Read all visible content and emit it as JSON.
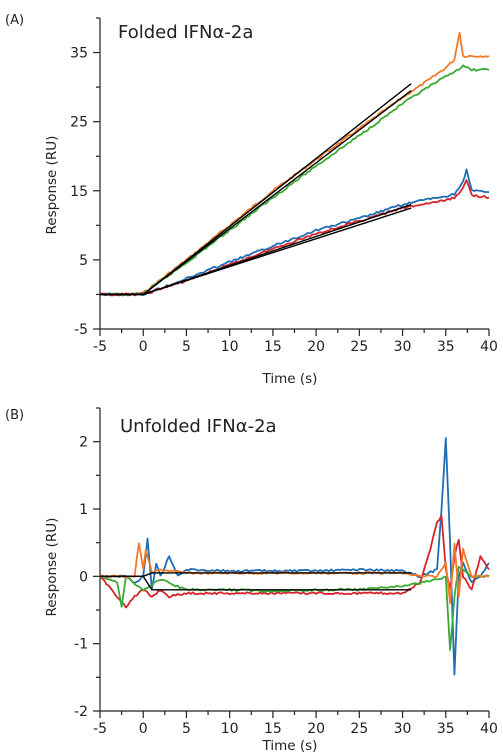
{
  "chart_data": [
    {
      "type": "line",
      "panel_label": "(A)",
      "title": "Folded IFNα-2a",
      "xlabel": "Time (s)",
      "ylabel": "Response (RU)",
      "xlim": [
        -5,
        40
      ],
      "ylim": [
        -5,
        40
      ],
      "xticks": [
        "-5",
        "0",
        "5",
        "10",
        "15",
        "20",
        "25",
        "30",
        "35",
        "40"
      ],
      "yticks": [
        "-5",
        "5",
        "15",
        "25",
        "35"
      ],
      "grid": false,
      "legend": "none",
      "series": [
        {
          "color": "#F07A28",
          "x": [
            -5,
            -2,
            0,
            5,
            10,
            15,
            20,
            25,
            30,
            33,
            35,
            36,
            36.6,
            37,
            38,
            40
          ],
          "y": [
            0,
            0,
            0.2,
            5,
            10,
            15,
            19.5,
            24,
            28.5,
            31,
            32.8,
            34,
            38,
            34.5,
            34.5,
            34.5
          ]
        },
        {
          "color": "#3AAA35",
          "x": [
            -5,
            -2,
            0,
            5,
            10,
            15,
            20,
            25,
            30,
            33,
            35,
            36,
            37,
            38,
            40
          ],
          "y": [
            0,
            0,
            0.1,
            4.6,
            9.3,
            14,
            18.6,
            23,
            27.6,
            30,
            31.5,
            32.3,
            33,
            32.5,
            32.5
          ]
        },
        {
          "color": "#1F6EB5",
          "x": [
            -5,
            -2,
            0,
            5,
            10,
            15,
            20,
            25,
            30,
            33,
            35,
            36,
            37,
            37.4,
            38,
            40
          ],
          "y": [
            0,
            0,
            0,
            2.3,
            4.7,
            7,
            9.3,
            11,
            13,
            13.8,
            14.2,
            14.5,
            16.4,
            18,
            15,
            14.8
          ]
        },
        {
          "color": "#D8232A",
          "x": [
            -5,
            -2,
            0,
            5,
            10,
            15,
            20,
            25,
            30,
            33,
            35,
            36,
            37,
            37.4,
            38,
            40
          ],
          "y": [
            0,
            0,
            0,
            2,
            4.3,
            6.6,
            8.8,
            10.6,
            12.5,
            13.2,
            13.6,
            14,
            15.4,
            16.5,
            14.4,
            14
          ]
        }
      ],
      "fits": [
        {
          "x": [
            -5,
            0,
            31
          ],
          "y": [
            0,
            0,
            30.5
          ]
        },
        {
          "x": [
            -5,
            0,
            31
          ],
          "y": [
            0,
            0,
            29.5
          ]
        },
        {
          "x": [
            -5,
            0,
            31
          ],
          "y": [
            0,
            0,
            13
          ]
        },
        {
          "x": [
            -5,
            0,
            31
          ],
          "y": [
            0,
            0,
            12.5
          ]
        }
      ]
    },
    {
      "type": "line",
      "panel_label": "(B)",
      "title": "Unfolded IFNα-2a",
      "xlabel": "Time (s)",
      "ylabel": "Response (RU)",
      "xlim": [
        -5,
        40
      ],
      "ylim": [
        -2,
        2.5
      ],
      "xticks": [
        "-5",
        "0",
        "5",
        "10",
        "15",
        "20",
        "25",
        "30",
        "35",
        "40"
      ],
      "yticks": [
        "-2",
        "-1",
        "0",
        "1",
        "2"
      ],
      "grid": false,
      "legend": "none",
      "series": [
        {
          "color": "#1F6EB5",
          "x": [
            -5,
            -2,
            -1,
            0,
            0.5,
            1,
            1.5,
            2,
            3,
            4,
            5,
            10,
            15,
            20,
            25,
            30,
            32,
            34,
            34.5,
            35,
            35.5,
            36,
            36.5,
            37,
            38,
            39,
            40
          ],
          "y": [
            0,
            0,
            -0.1,
            0,
            0.55,
            -0.2,
            0.2,
            0,
            0.3,
            0,
            0.1,
            0.08,
            0.08,
            0.08,
            0.1,
            0.08,
            0,
            0.1,
            1,
            2.05,
            0.5,
            -1.45,
            0,
            0.2,
            -0.1,
            0,
            0.2
          ]
        },
        {
          "color": "#D8232A",
          "x": [
            -5,
            -3,
            -2,
            -1,
            0,
            1,
            2,
            3,
            5,
            10,
            15,
            20,
            25,
            30,
            32,
            33,
            34,
            34.5,
            35,
            35.5,
            36,
            36.5,
            37,
            38,
            39,
            40
          ],
          "y": [
            0,
            -0.3,
            -0.45,
            -0.3,
            -0.2,
            -0.3,
            -0.2,
            -0.3,
            -0.25,
            -0.25,
            -0.25,
            -0.25,
            -0.25,
            -0.25,
            -0.1,
            0.3,
            0.8,
            0.9,
            0.1,
            -0.2,
            0.3,
            0.55,
            0,
            -0.2,
            0.3,
            0.1
          ]
        },
        {
          "color": "#3AAA35",
          "x": [
            -5,
            -3,
            -2.5,
            -2,
            -1,
            0,
            2,
            5,
            10,
            15,
            20,
            25,
            30,
            32,
            34,
            35,
            35.5,
            36,
            36.5,
            37,
            38,
            40
          ],
          "y": [
            0,
            -0.1,
            -0.45,
            0,
            -0.1,
            -0.2,
            -0.05,
            -0.2,
            -0.2,
            -0.22,
            -0.2,
            -0.2,
            -0.15,
            -0.1,
            -0.05,
            0,
            -1.1,
            -0.3,
            0.15,
            0.1,
            0,
            0
          ]
        },
        {
          "color": "#F07A28",
          "x": [
            -5,
            -1,
            -0.5,
            0,
            0.3,
            1,
            2,
            5,
            10,
            15,
            20,
            25,
            30,
            32,
            34,
            35,
            35.5,
            36,
            36.5,
            37,
            38,
            40
          ],
          "y": [
            0,
            0,
            0.5,
            0.1,
            0.4,
            0.05,
            0.1,
            0.05,
            0.05,
            0.05,
            0.05,
            0.05,
            0.05,
            0,
            0,
            0.2,
            -0.4,
            0.5,
            -0.3,
            0.4,
            0,
            0
          ]
        }
      ],
      "fits": [
        {
          "x": [
            -5,
            0,
            1,
            31
          ],
          "y": [
            0,
            0,
            0.05,
            0.05
          ]
        },
        {
          "x": [
            -5,
            0,
            1,
            31
          ],
          "y": [
            0,
            0,
            -0.2,
            -0.2
          ]
        }
      ]
    }
  ]
}
